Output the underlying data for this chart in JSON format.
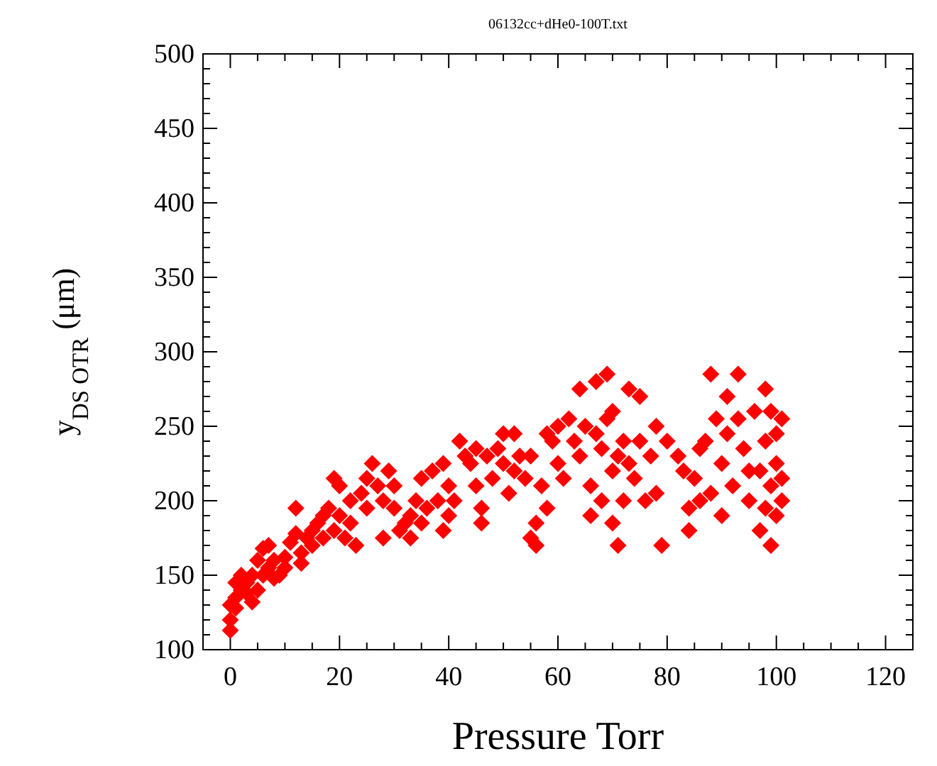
{
  "chart_data": {
    "type": "scatter",
    "title": "06132cc+dHe0-100T.txt",
    "xlabel": "Pressure Torr",
    "ylabel": "y$_{DS OTR}$ (μm)",
    "marker": "diamond",
    "grid": false,
    "xlim": [
      -5,
      125
    ],
    "ylim": [
      100,
      500
    ],
    "xticks": [
      0,
      {
        "value": 5,
        "label": null
      },
      {
        "value": 10,
        "label": null
      },
      {
        "value": 15,
        "label": null
      },
      20,
      {
        "value": 25,
        "label": null
      },
      {
        "value": 30,
        "label": null
      },
      {
        "value": 35,
        "label": null
      },
      40,
      {
        "value": 45,
        "label": null
      },
      {
        "value": 50,
        "label": null
      },
      {
        "value": 55,
        "label": null
      },
      60,
      {
        "value": 65,
        "label": null
      },
      {
        "value": 70,
        "label": null
      },
      {
        "value": 75,
        "label": null
      },
      80,
      {
        "value": 85,
        "label": null
      },
      {
        "value": 90,
        "label": null
      },
      {
        "value": 95,
        "label": null
      },
      100,
      {
        "value": 105,
        "label": null
      },
      {
        "value": 110,
        "label": null
      },
      {
        "value": 115,
        "label": null
      },
      120
    ],
    "yticks": [
      100,
      {
        "value": 110,
        "label": null
      },
      {
        "value": 120,
        "label": null
      },
      {
        "value": 130,
        "label": null
      },
      {
        "value": 140,
        "label": null
      },
      150,
      {
        "value": 160,
        "label": null
      },
      {
        "value": 170,
        "label": null
      },
      {
        "value": 180,
        "label": null
      },
      {
        "value": 190,
        "label": null
      },
      200,
      {
        "value": 210,
        "label": null
      },
      {
        "value": 220,
        "label": null
      },
      {
        "value": 230,
        "label": null
      },
      {
        "value": 240,
        "label": null
      },
      250,
      {
        "value": 260,
        "label": null
      },
      {
        "value": 270,
        "label": null
      },
      {
        "value": 280,
        "label": null
      },
      {
        "value": 290,
        "label": null
      },
      300,
      {
        "value": 310,
        "label": null
      },
      {
        "value": 320,
        "label": null
      },
      {
        "value": 330,
        "label": null
      },
      {
        "value": 340,
        "label": null
      },
      350,
      {
        "value": 360,
        "label": null
      },
      {
        "value": 370,
        "label": null
      },
      {
        "value": 380,
        "label": null
      },
      {
        "value": 390,
        "label": null
      },
      400,
      {
        "value": 410,
        "label": null
      },
      {
        "value": 420,
        "label": null
      },
      {
        "value": 430,
        "label": null
      },
      {
        "value": 440,
        "label": null
      },
      450,
      {
        "value": 460,
        "label": null
      },
      {
        "value": 470,
        "label": null
      },
      {
        "value": 480,
        "label": null
      },
      {
        "value": 490,
        "label": null
      },
      500
    ],
    "series": [
      {
        "color": "#ff0000",
        "x": [
          0,
          0,
          0,
          1,
          1,
          1,
          2,
          2,
          3,
          3,
          4,
          4,
          5,
          5,
          6,
          6,
          7,
          7,
          8,
          8,
          9,
          10,
          10,
          11,
          12,
          12,
          13,
          13,
          14,
          15,
          15,
          16,
          17,
          17,
          18,
          19,
          19,
          20,
          20,
          21,
          22,
          22,
          23,
          24,
          25,
          25,
          26,
          27,
          28,
          28,
          29,
          30,
          30,
          31,
          32,
          33,
          33,
          34,
          35,
          35,
          36,
          37,
          38,
          39,
          39,
          40,
          40,
          41,
          42,
          43,
          44,
          45,
          45,
          46,
          46,
          47,
          48,
          49,
          50,
          50,
          51,
          52,
          52,
          53,
          54,
          55,
          55,
          56,
          56,
          57,
          58,
          58,
          59,
          60,
          60,
          61,
          62,
          63,
          64,
          64,
          65,
          66,
          66,
          67,
          67,
          68,
          68,
          69,
          69,
          70,
          70,
          70,
          71,
          71,
          72,
          72,
          73,
          73,
          74,
          75,
          75,
          76,
          77,
          78,
          78,
          79,
          80,
          82,
          83,
          84,
          84,
          85,
          86,
          86,
          87,
          88,
          88,
          89,
          90,
          90,
          91,
          91,
          92,
          93,
          93,
          94,
          95,
          95,
          96,
          97,
          97,
          98,
          98,
          98,
          99,
          99,
          99,
          100,
          100,
          100,
          101,
          101,
          101
        ],
        "values": [
          113,
          120,
          130,
          128,
          135,
          145,
          150,
          140,
          138,
          145,
          132,
          150,
          140,
          160,
          168,
          150,
          170,
          155,
          148,
          160,
          150,
          155,
          162,
          172,
          195,
          178,
          165,
          158,
          175,
          180,
          170,
          185,
          190,
          175,
          195,
          215,
          180,
          210,
          190,
          175,
          185,
          200,
          170,
          205,
          215,
          195,
          225,
          210,
          175,
          200,
          220,
          210,
          195,
          180,
          185,
          190,
          175,
          200,
          215,
          185,
          195,
          220,
          200,
          225,
          180,
          190,
          210,
          200,
          240,
          230,
          225,
          235,
          210,
          195,
          185,
          230,
          215,
          235,
          245,
          225,
          205,
          245,
          220,
          230,
          215,
          230,
          175,
          185,
          170,
          210,
          195,
          245,
          240,
          225,
          250,
          215,
          255,
          240,
          275,
          230,
          250,
          210,
          190,
          245,
          280,
          235,
          200,
          285,
          255,
          260,
          220,
          185,
          230,
          170,
          240,
          200,
          275,
          225,
          215,
          270,
          240,
          200,
          230,
          250,
          205,
          170,
          240,
          230,
          220,
          195,
          180,
          215,
          200,
          235,
          240,
          285,
          205,
          255,
          225,
          190,
          270,
          245,
          210,
          285,
          255,
          235,
          220,
          200,
          260,
          180,
          220,
          275,
          240,
          195,
          210,
          170,
          260,
          245,
          225,
          190,
          255,
          215,
          200
        ]
      }
    ]
  }
}
